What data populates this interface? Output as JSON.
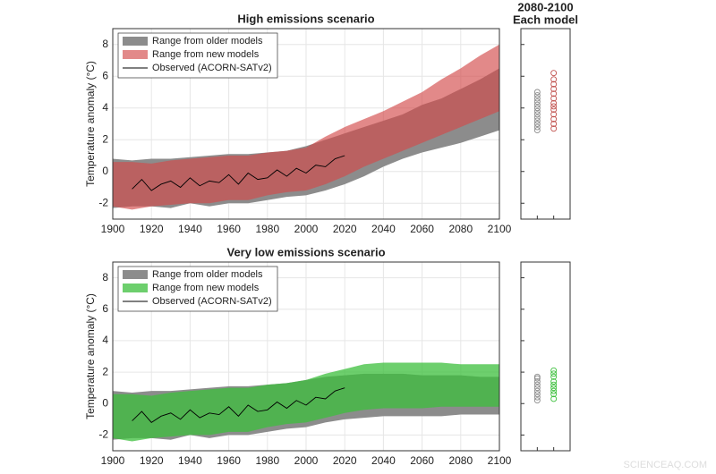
{
  "watermark": "SCIENCEAQ.COM",
  "chart_data": [
    {
      "type": "range",
      "title": "High emissions scenario",
      "ylabel": "Temperature anomaly (°C)",
      "x": [
        1900,
        1910,
        1920,
        1930,
        1940,
        1950,
        1960,
        1970,
        1980,
        1990,
        2000,
        2010,
        2020,
        2030,
        2040,
        2050,
        2060,
        2070,
        2080,
        2090,
        2100
      ],
      "xlim": [
        1900,
        2100
      ],
      "xticks": [
        1900,
        1920,
        1940,
        1960,
        1980,
        2000,
        2020,
        2040,
        2060,
        2080,
        2100
      ],
      "ylim": [
        -3,
        9
      ],
      "yticks": [
        -2,
        0,
        2,
        4,
        6,
        8
      ],
      "grid": true,
      "legend": "upper-left",
      "series": [
        {
          "name": "Range from older models",
          "color": "#8c8c8c",
          "opacity": 1,
          "lower": [
            -2.3,
            -2.2,
            -2.2,
            -2.3,
            -2.0,
            -2.2,
            -2.0,
            -2.0,
            -1.8,
            -1.6,
            -1.5,
            -1.2,
            -0.8,
            -0.3,
            0.3,
            0.8,
            1.2,
            1.5,
            1.8,
            2.2,
            2.6
          ],
          "upper": [
            0.8,
            0.7,
            0.8,
            0.8,
            0.9,
            1.0,
            1.1,
            1.1,
            1.2,
            1.3,
            1.6,
            2.0,
            2.4,
            2.8,
            3.2,
            3.6,
            4.2,
            4.6,
            5.2,
            5.8,
            6.5
          ]
        },
        {
          "name": "Range from new models",
          "color": "#d24a4a",
          "opacity": 0.65,
          "lower": [
            -2.2,
            -2.4,
            -2.2,
            -2.1,
            -2.0,
            -2.0,
            -1.8,
            -1.8,
            -1.5,
            -1.3,
            -1.2,
            -0.8,
            -0.3,
            0.3,
            0.8,
            1.3,
            1.8,
            2.3,
            2.8,
            3.3,
            3.8
          ],
          "upper": [
            0.6,
            0.6,
            0.5,
            0.7,
            0.8,
            0.9,
            1.0,
            1.0,
            1.2,
            1.3,
            1.5,
            2.2,
            2.8,
            3.3,
            3.8,
            4.4,
            5.0,
            5.8,
            6.5,
            7.3,
            8.0
          ]
        }
      ],
      "observed": {
        "name": "Observed (ACORN-SATv2)",
        "color": "#000000",
        "x": [
          1910,
          1915,
          1920,
          1925,
          1930,
          1935,
          1940,
          1945,
          1950,
          1955,
          1960,
          1965,
          1970,
          1975,
          1980,
          1985,
          1990,
          1995,
          2000,
          2005,
          2010,
          2015,
          2020
        ],
        "values": [
          -1.1,
          -0.5,
          -1.2,
          -0.8,
          -0.6,
          -1.0,
          -0.4,
          -0.9,
          -0.6,
          -0.7,
          -0.2,
          -0.8,
          -0.1,
          -0.5,
          -0.4,
          0.1,
          -0.3,
          0.2,
          -0.1,
          0.4,
          0.3,
          0.8,
          1.0
        ]
      }
    },
    {
      "type": "strip",
      "title": "2080-2100",
      "subtitle": "Each model",
      "ylim": [
        -3,
        9
      ],
      "yticks": [
        -2,
        0,
        2,
        4,
        6,
        8
      ],
      "series": [
        {
          "color": "#8c8c8c",
          "values": [
            2.6,
            2.8,
            3.0,
            3.2,
            3.4,
            3.6,
            3.8,
            4.0,
            4.2,
            4.4,
            4.6,
            4.8,
            5.0
          ]
        },
        {
          "color": "#c0504d",
          "values": [
            2.7,
            3.0,
            3.3,
            3.6,
            3.9,
            4.1,
            4.3,
            4.6,
            4.9,
            5.2,
            5.5,
            5.8,
            6.2
          ]
        }
      ]
    },
    {
      "type": "range",
      "title": "Very low emissions scenario",
      "ylabel": "Temperature anomaly (°C)",
      "x": [
        1900,
        1910,
        1920,
        1930,
        1940,
        1950,
        1960,
        1970,
        1980,
        1990,
        2000,
        2010,
        2020,
        2030,
        2040,
        2050,
        2060,
        2070,
        2080,
        2090,
        2100
      ],
      "xlim": [
        1900,
        2100
      ],
      "xticks": [
        1900,
        1920,
        1940,
        1960,
        1980,
        2000,
        2020,
        2040,
        2060,
        2080,
        2100
      ],
      "ylim": [
        -3,
        9
      ],
      "yticks": [
        -2,
        0,
        2,
        4,
        6,
        8
      ],
      "grid": true,
      "legend": "upper-left",
      "series": [
        {
          "name": "Range from older models",
          "color": "#8c8c8c",
          "opacity": 1,
          "lower": [
            -2.3,
            -2.2,
            -2.2,
            -2.3,
            -2.0,
            -2.2,
            -2.0,
            -2.0,
            -1.8,
            -1.6,
            -1.5,
            -1.2,
            -1.0,
            -0.9,
            -0.8,
            -0.8,
            -0.8,
            -0.8,
            -0.7,
            -0.7,
            -0.7
          ],
          "upper": [
            0.8,
            0.7,
            0.8,
            0.8,
            0.9,
            1.0,
            1.1,
            1.1,
            1.2,
            1.3,
            1.5,
            1.7,
            1.8,
            1.9,
            1.9,
            1.9,
            1.8,
            1.8,
            1.8,
            1.7,
            1.7
          ]
        },
        {
          "name": "Range from new models",
          "color": "#3cbf3c",
          "opacity": 0.75,
          "lower": [
            -2.2,
            -2.4,
            -2.2,
            -2.1,
            -2.0,
            -2.0,
            -1.8,
            -1.8,
            -1.5,
            -1.3,
            -1.2,
            -0.9,
            -0.6,
            -0.4,
            -0.3,
            -0.3,
            -0.3,
            -0.2,
            -0.2,
            -0.2,
            -0.2
          ],
          "upper": [
            0.6,
            0.6,
            0.5,
            0.7,
            0.8,
            0.9,
            1.0,
            1.0,
            1.2,
            1.3,
            1.5,
            1.9,
            2.2,
            2.5,
            2.6,
            2.6,
            2.6,
            2.6,
            2.5,
            2.5,
            2.5
          ]
        }
      ],
      "observed": {
        "name": "Observed (ACORN-SATv2)",
        "color": "#000000",
        "x": [
          1910,
          1915,
          1920,
          1925,
          1930,
          1935,
          1940,
          1945,
          1950,
          1955,
          1960,
          1965,
          1970,
          1975,
          1980,
          1985,
          1990,
          1995,
          2000,
          2005,
          2010,
          2015,
          2020
        ],
        "values": [
          -1.1,
          -0.5,
          -1.2,
          -0.8,
          -0.6,
          -1.0,
          -0.4,
          -0.9,
          -0.6,
          -0.7,
          -0.2,
          -0.8,
          -0.1,
          -0.5,
          -0.4,
          0.1,
          -0.3,
          0.2,
          -0.1,
          0.4,
          0.3,
          0.8,
          1.0
        ]
      }
    },
    {
      "type": "strip",
      "ylim": [
        -3,
        9
      ],
      "yticks": [
        -2,
        0,
        2,
        4,
        6,
        8
      ],
      "series": [
        {
          "color": "#8c8c8c",
          "values": [
            0.2,
            0.4,
            0.6,
            0.8,
            1.0,
            1.2,
            1.4,
            1.6,
            1.7
          ]
        },
        {
          "color": "#3cbf3c",
          "values": [
            0.3,
            0.6,
            0.8,
            1.0,
            1.2,
            1.4,
            1.7,
            1.9,
            2.1
          ]
        }
      ]
    }
  ]
}
